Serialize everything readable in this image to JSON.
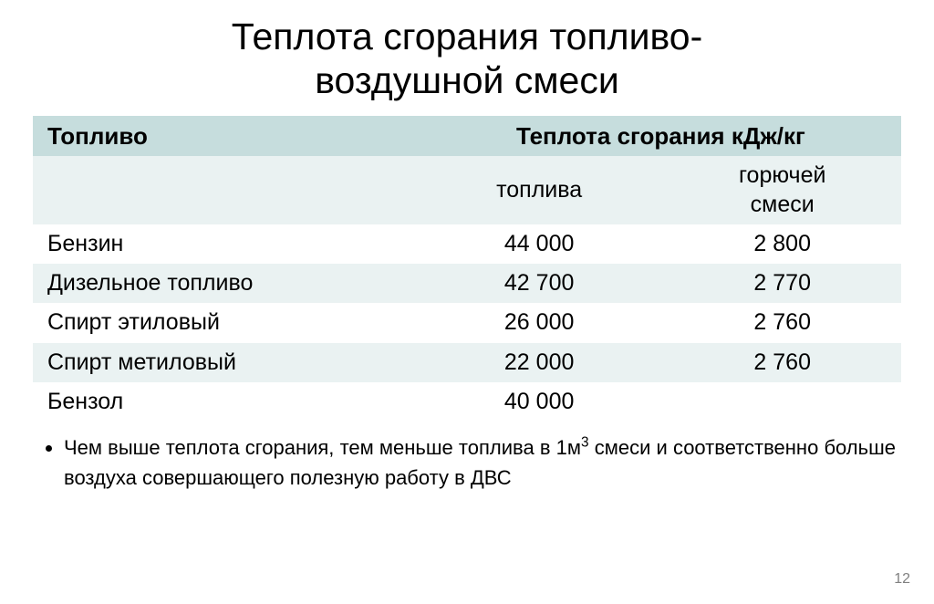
{
  "title_line1": "Теплота сгорания топливо-",
  "title_line2": "воздушной смеси",
  "table": {
    "header_bg": "#c6dddd",
    "band_bg": "#eaf2f2",
    "cols": {
      "fuel_header": "Топливо",
      "heat_header": "Теплота сгорания кДж/кг",
      "sub_fuel": "топлива",
      "sub_mix_l1": "горючей",
      "sub_mix_l2": "смеси"
    },
    "rows": [
      {
        "name": "Бензин",
        "fuel": "44 000",
        "mix": "2 800"
      },
      {
        "name": "Дизельное топливо",
        "fuel": "42 700",
        "mix": "2 770"
      },
      {
        "name": "Спирт этиловый",
        "fuel": "26 000",
        "mix": "2 760"
      },
      {
        "name": "Спирт метиловый",
        "fuel": "22 000",
        "mix": "2 760"
      },
      {
        "name": "Бензол",
        "fuel": "40 000",
        "mix": ""
      }
    ]
  },
  "note_pre": "Чем выше теплота сгорания, тем меньше топлива в 1м",
  "note_sup": "3",
  "note_post": " смеси и соответственно больше воздуха совершающего полезную работу в ДВС",
  "page_number": "12"
}
